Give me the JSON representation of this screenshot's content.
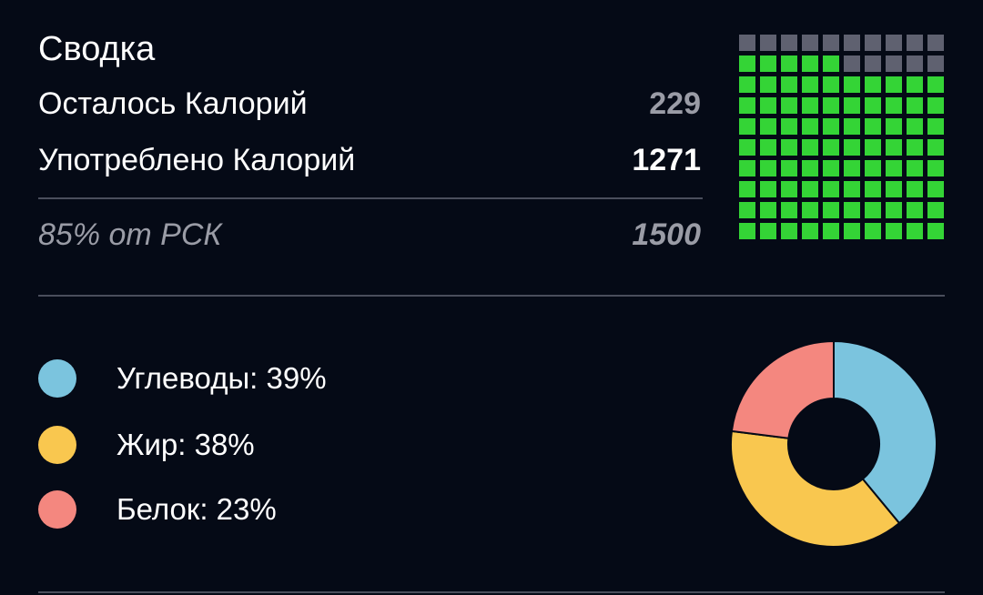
{
  "summary": {
    "title": "Сводка",
    "remaining_label": "Осталось Калорий",
    "remaining_value": "229",
    "consumed_label": "Употреблено Калорий",
    "consumed_value": "1271",
    "rdi_label": "85% от РСК",
    "rdi_value": "1500"
  },
  "waffle": {
    "total_cells": 100,
    "filled_cells": 85,
    "filled_color": "#34d436",
    "empty_color": "#5f6170"
  },
  "macros": {
    "items": [
      {
        "label": "Углеводы: 39%",
        "percent": 39,
        "color": "#7bc4de"
      },
      {
        "label": "Жир: 38%",
        "percent": 38,
        "color": "#f9c74f"
      },
      {
        "label": "Белок: 23%",
        "percent": 23,
        "color": "#f4877f"
      }
    ]
  },
  "colors": {
    "background": "#050a16",
    "divider": "#4a4e5c",
    "muted_text": "#9a9ca6"
  }
}
